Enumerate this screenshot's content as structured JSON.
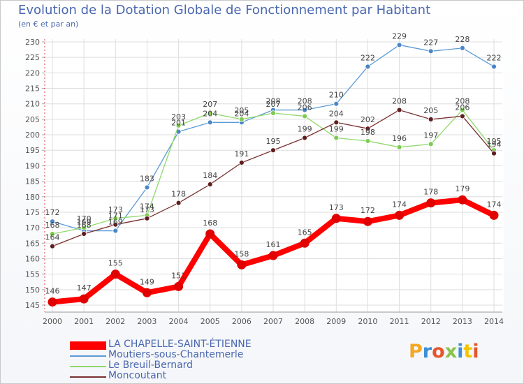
{
  "title": "Evolution de la Dotation Globale de Fonctionnement par Habitant",
  "subtitle": "(en € et par an)",
  "brand": {
    "text": "Proxiti"
  },
  "chart_data": {
    "type": "line",
    "title": "Evolution de la Dotation Globale de Fonctionnement par Habitant",
    "ylabel": "(en € et par an)",
    "xlabel": "",
    "categories": [
      "2000",
      "2001",
      "2002",
      "2003",
      "2004",
      "2005",
      "2006",
      "2007",
      "2008",
      "2009",
      "2010",
      "2011",
      "2012",
      "2013",
      "2014"
    ],
    "ylim": [
      145,
      230
    ],
    "yticks": [
      145,
      150,
      155,
      160,
      165,
      170,
      175,
      180,
      185,
      190,
      195,
      200,
      205,
      210,
      215,
      220,
      225,
      230
    ],
    "grid": true,
    "legend_position": "bottom-left",
    "series": [
      {
        "name": "Moutiers-sous-Chantemerle",
        "color": "#5b9bd5",
        "marker": "#4a86c8",
        "values": [
          172,
          169,
          169,
          183,
          201,
          204,
          204,
          208,
          208,
          210,
          222,
          229,
          227,
          228,
          222
        ],
        "labels": [
          "172",
          "169",
          "169",
          "183",
          "201",
          "204",
          "204",
          "208",
          "208",
          "210",
          "222",
          "229",
          "227",
          "228",
          "222"
        ]
      },
      {
        "name": "Le Breuil-Bernard",
        "color": "#8fd86a",
        "marker": "#7ccc50",
        "values": [
          168,
          170,
          173,
          174,
          203,
          207,
          205,
          207,
          206,
          199,
          198,
          196,
          197,
          208,
          195
        ],
        "labels": [
          "168",
          "170",
          "173",
          "174",
          "203",
          "207",
          "205",
          "207",
          "206",
          "199",
          "198",
          "196",
          "197",
          "208",
          "195"
        ]
      },
      {
        "name": "Moncoutant",
        "color": "#7a3030",
        "marker": "#5e1e1e",
        "values": [
          164,
          168,
          171,
          173,
          178,
          184,
          191,
          195,
          199,
          204,
          202,
          208,
          205,
          206,
          194
        ],
        "labels": [
          "164",
          "168",
          "171",
          "173",
          "178",
          "184",
          "191",
          "195",
          "199",
          "204",
          "202",
          "208",
          "205",
          "206",
          "194"
        ]
      },
      {
        "name": "LA CHAPELLE-SAINT-ÉTIENNE",
        "color": "#ff0000",
        "marker": "#e00000",
        "thick": true,
        "values": [
          146,
          147,
          155,
          149,
          151,
          168,
          158,
          161,
          165,
          173,
          172,
          174,
          178,
          179,
          174
        ],
        "labels": [
          "146",
          "147",
          "155",
          "149",
          "151",
          "168",
          "158",
          "161",
          "165",
          "173",
          "172",
          "174",
          "178",
          "179",
          "174"
        ]
      }
    ],
    "legend": [
      "LA CHAPELLE-SAINT-ÉTIENNE",
      "Moutiers-sous-Chantemerle",
      "Le Breuil-Bernard",
      "Moncoutant"
    ]
  }
}
